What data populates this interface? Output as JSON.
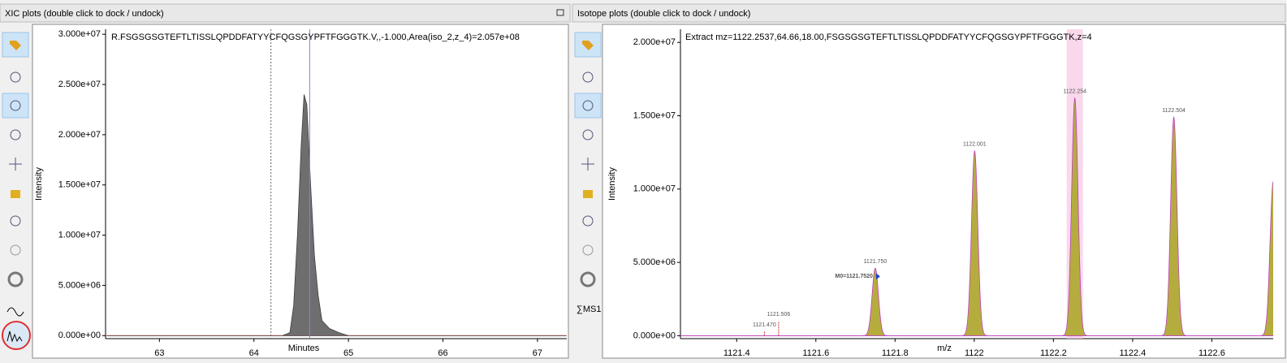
{
  "panels": [
    {
      "title": "XIC plots (double click to dock / undock)",
      "chart": {
        "type": "area",
        "title": "R.FSGSGSGTEFTLTISSLQPDDFATYYCFQGSGYPFTFGGGTK.V,,-1.000,Area(iso_2,z_4)=2.057e+08",
        "x_label": "Minutes",
        "y_label": "Intensity",
        "color": "#6e6e6e",
        "baseline_color": "#d04040",
        "x": [
          62.45,
          64.3,
          64.38,
          64.42,
          64.46,
          64.5,
          64.53,
          64.56,
          64.6,
          64.64,
          64.68,
          64.72,
          64.8,
          64.9,
          65.0,
          67.3
        ],
        "values": [
          0,
          0,
          300000,
          3000000,
          10000000,
          19000000,
          24000000,
          23000000,
          15000000,
          8000000,
          4000000,
          1500000,
          700000,
          300000,
          0,
          0
        ],
        "vlines": [
          64.18,
          64.59
        ],
        "vline_colors": [
          "#666666",
          "#8080f0"
        ],
        "xlim": [
          62.43,
          67.31
        ],
        "xticks": [
          63,
          64,
          65,
          66,
          67
        ],
        "ylim": [
          -300000,
          30500000
        ],
        "yticks": [
          {
            "value": 0,
            "label": "0.000e+00"
          },
          {
            "value": 5000000,
            "label": "5.000e+06"
          },
          {
            "value": 10000000,
            "label": "1.000e+07"
          },
          {
            "value": 15000000,
            "label": "1.500e+07"
          },
          {
            "value": 20000000,
            "label": "2.000e+07"
          },
          {
            "value": 25000000,
            "label": "2.500e+07"
          },
          {
            "value": 30000000,
            "label": "3.000e+07"
          }
        ]
      }
    },
    {
      "title": "Isotope plots (double click to dock / undock)",
      "ms1_label": "∑MS1",
      "chart": {
        "type": "peaks",
        "title": "Extract mz=1122.2537,64.66,18.00,FSGSGSGTEFTLTISSLQPDDFATYYCFQGSGYPFTFGGGTK,z=4",
        "x_label": "m/z",
        "y_label": "Intensity",
        "color": "#b5ac3e",
        "line_color": "#c040c0",
        "x": [
          1121.47,
          1121.506,
          1121.75,
          1122.001,
          1122.254,
          1122.504,
          1122.755
        ],
        "values": [
          300000,
          1000000,
          4600000,
          12600000,
          16200000,
          14900000,
          10500000
        ],
        "x_labels": [
          "1121.470",
          "1121.506",
          "1121.750",
          "1122.001",
          "1122.254",
          "1122.504",
          null
        ],
        "highlight": 1122.254,
        "highlight_color": "#f7c8e4",
        "m0": {
          "value": 1121.752,
          "label": "M0=1121.7520"
        },
        "xlim": [
          1121.258,
          1122.755
        ],
        "xticks": [
          {
            "value": 1121.4,
            "label": "1121.4"
          },
          {
            "value": 1121.6,
            "label": "1121.6"
          },
          {
            "value": 1121.8,
            "label": "1121.8"
          },
          1122,
          {
            "value": 1122.2,
            "label": "1122.2"
          },
          {
            "value": 1122.4,
            "label": "1122.4"
          },
          {
            "value": 1122.6,
            "label": "1122.6"
          }
        ],
        "ylim": [
          -200000,
          20900000
        ],
        "yticks": [
          {
            "value": 0,
            "label": "0.000e+00"
          },
          {
            "value": 5000000,
            "label": "5.000e+06"
          },
          {
            "value": 10000000,
            "label": "1.000e+07"
          },
          {
            "value": 15000000,
            "label": "1.500e+07"
          },
          {
            "value": 20000000,
            "label": "2.000e+07"
          }
        ]
      }
    }
  ]
}
